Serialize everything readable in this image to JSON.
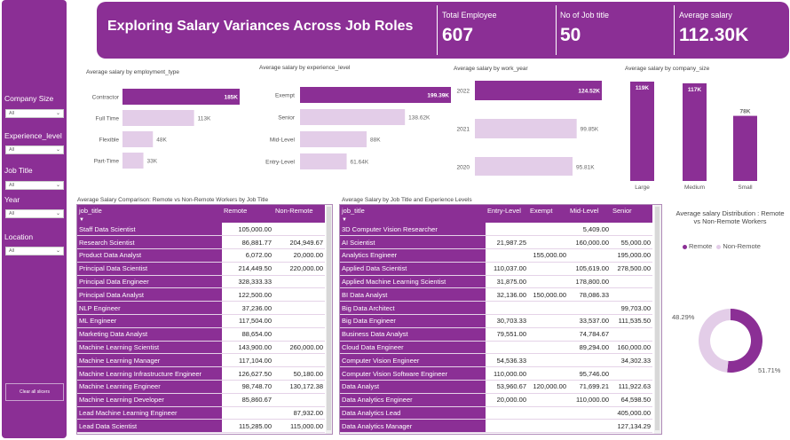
{
  "header": {
    "title": "Exploring Salary Variances Across Job Roles",
    "kpis": [
      {
        "label": "Total Employee",
        "value": "607"
      },
      {
        "label": "No of Job title",
        "value": "50"
      },
      {
        "label": "Average salary",
        "value": "112.30K"
      }
    ]
  },
  "sidebar": {
    "slicers": [
      {
        "label": "Company Size",
        "value": "All"
      },
      {
        "label": "Experience_level",
        "value": "All"
      },
      {
        "label": "Job Title",
        "value": "All"
      },
      {
        "label": "Year",
        "value": "All"
      },
      {
        "label": "Location",
        "value": "All"
      }
    ],
    "clear_label": "Clear all slicers"
  },
  "colors": {
    "purple": "#8b2f95",
    "light": "#e3cde8"
  },
  "chart_data": [
    {
      "type": "bar",
      "orientation": "horizontal",
      "title": "Average salary by employment_type",
      "categories": [
        "Contractor",
        "Full Time",
        "Flexible",
        "Part-Time"
      ],
      "values": [
        185,
        113,
        48,
        33
      ],
      "labels": [
        "185K",
        "113K",
        "48K",
        "33K"
      ],
      "max": 185
    },
    {
      "type": "bar",
      "orientation": "horizontal",
      "title": "Average salary by experience_level",
      "categories": [
        "Exempt",
        "Senior",
        "Mid-Level",
        "Entry-Level"
      ],
      "values": [
        199.39,
        138.62,
        88,
        61.64
      ],
      "labels": [
        "199.39K",
        "138.62K",
        "88K",
        "61.64K"
      ],
      "max": 199.39
    },
    {
      "type": "bar",
      "orientation": "horizontal",
      "title": "Average salary by work_year",
      "categories": [
        "2022",
        "2021",
        "2020"
      ],
      "values": [
        124.52,
        99.85,
        95.81
      ],
      "labels": [
        "124.52K",
        "99.85K",
        "95.81K"
      ],
      "max": 124.52
    },
    {
      "type": "bar",
      "orientation": "vertical",
      "title": "Average salary by company_size",
      "categories": [
        "Large",
        "Medium",
        "Small"
      ],
      "values": [
        119,
        117,
        78
      ],
      "labels": [
        "119K",
        "117K",
        "78K"
      ],
      "max": 119
    },
    {
      "type": "pie",
      "title": "Average salary Distribution : Remote vs Non-Remote Workers",
      "series": [
        {
          "name": "Remote",
          "value": 51.71,
          "label": "51.71%"
        },
        {
          "name": "Non-Remote",
          "value": 48.29,
          "label": "48.29%"
        }
      ]
    }
  ],
  "remote_table": {
    "title": "Average Salary Comparison: Remote vs Non-Remote Workers by Job Title",
    "columns": [
      "job_title",
      "Remote",
      "Non-Remote"
    ],
    "rows": [
      [
        "Staff Data Scientist",
        "105,000.00",
        ""
      ],
      [
        "Research Scientist",
        "86,881.77",
        "204,949.67"
      ],
      [
        "Product Data Analyst",
        "6,072.00",
        "20,000.00"
      ],
      [
        "Principal Data Scientist",
        "214,449.50",
        "220,000.00"
      ],
      [
        "Principal Data Engineer",
        "328,333.33",
        ""
      ],
      [
        "Principal Data Analyst",
        "122,500.00",
        ""
      ],
      [
        "NLP Engineer",
        "37,236.00",
        ""
      ],
      [
        "ML Engineer",
        "117,504.00",
        ""
      ],
      [
        "Marketing Data Analyst",
        "88,654.00",
        ""
      ],
      [
        "Machine Learning Scientist",
        "143,900.00",
        "260,000.00"
      ],
      [
        "Machine Learning Manager",
        "117,104.00",
        ""
      ],
      [
        "Machine Learning Infrastructure Engineer",
        "126,627.50",
        "50,180.00"
      ],
      [
        "Machine Learning Engineer",
        "98,748.70",
        "130,172.38"
      ],
      [
        "Machine Learning Developer",
        "85,860.67",
        ""
      ],
      [
        "Lead Machine Learning Engineer",
        "",
        "87,932.00"
      ],
      [
        "Lead Data Scientist",
        "115,285.00",
        "115,000.00"
      ]
    ]
  },
  "exp_table": {
    "title": "Average Salary by Job Title and Experience Levels",
    "columns": [
      "job_title",
      "Entry-Level",
      "Exempt",
      "Mid-Level",
      "Senior"
    ],
    "rows": [
      [
        "3D Computer Vision Researcher",
        "",
        "",
        "5,409.00",
        ""
      ],
      [
        "AI Scientist",
        "21,987.25",
        "",
        "160,000.00",
        "55,000.00"
      ],
      [
        "Analytics Engineer",
        "",
        "155,000.00",
        "",
        "195,000.00"
      ],
      [
        "Applied Data Scientist",
        "110,037.00",
        "",
        "105,619.00",
        "278,500.00"
      ],
      [
        "Applied Machine Learning Scientist",
        "31,875.00",
        "",
        "178,800.00",
        ""
      ],
      [
        "BI Data Analyst",
        "32,136.00",
        "150,000.00",
        "78,086.33",
        ""
      ],
      [
        "Big Data Architect",
        "",
        "",
        "",
        "99,703.00"
      ],
      [
        "Big Data Engineer",
        "30,703.33",
        "",
        "33,537.00",
        "111,535.50"
      ],
      [
        "Business Data Analyst",
        "79,551.00",
        "",
        "74,784.67",
        ""
      ],
      [
        "Cloud Data Engineer",
        "",
        "",
        "89,294.00",
        "160,000.00"
      ],
      [
        "Computer Vision Engineer",
        "54,536.33",
        "",
        "",
        "34,302.33"
      ],
      [
        "Computer Vision Software Engineer",
        "110,000.00",
        "",
        "95,746.00",
        ""
      ],
      [
        "Data Analyst",
        "53,960.67",
        "120,000.00",
        "71,699.21",
        "111,922.63"
      ],
      [
        "Data Analytics Engineer",
        "20,000.00",
        "",
        "110,000.00",
        "64,598.50"
      ],
      [
        "Data Analytics Lead",
        "",
        "",
        "",
        "405,000.00"
      ],
      [
        "Data Analytics Manager",
        "",
        "",
        "",
        "127,134.29"
      ]
    ]
  }
}
